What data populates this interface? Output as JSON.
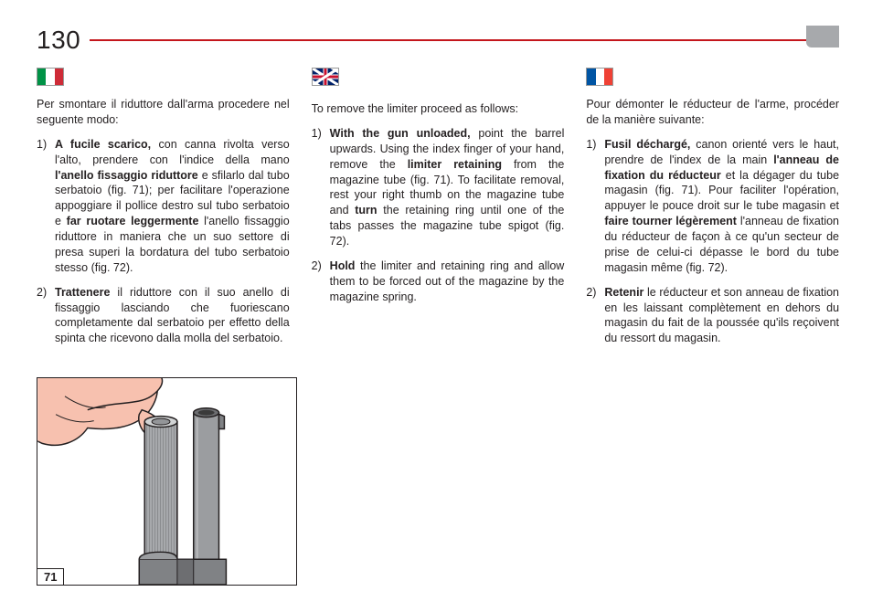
{
  "page_number": "130",
  "figure_label": "71",
  "colors": {
    "rule": "#c4161c",
    "text": "#231f20",
    "corner_tab": "#a7a9ac",
    "hand_fill": "#f7c1af",
    "hand_line": "#231f20",
    "tube_fill": "#a7a9ac",
    "tube_dark": "#6d6e71",
    "accent_yellow": "#f9e04b"
  },
  "columns": {
    "it": {
      "intro": "Per smontare il riduttore dall'arma procedere nel seguente modo:",
      "items": [
        "<b>A fucile scarico,</b> con canna rivolta verso l'alto, prendere con l'indice della mano <b>l'anello fissaggio riduttore</b> e sfilarlo dal tubo serbatoio (fig. 71); per facilitare l'operazione appoggiare il pollice destro sul tubo serbatoio e <b>far ruotare leggermente</b> l'anello fissaggio riduttore in maniera che un suo settore di presa superi la bordatura del tubo serbatoio stesso (fig. 72).",
        "<b>Trattenere</b> il riduttore con il suo anello di fissaggio lasciando che fuoriescano completamente dal serbatoio per effetto della spinta che ricevono dalla molla del serbatoio."
      ]
    },
    "en": {
      "intro": "To remove the limiter proceed as follows:",
      "items": [
        "<b>With the gun unloaded,</b> point the barrel upwards. Using the index finger of your hand, remove the <b>limiter retaining</b> from the magazine tube (fig. 71). To facilitate removal, rest your right thumb on the magazine tube and <b>turn</b> the retaining ring until one of the tabs passes the magazine tube spigot (fig. 72).",
        "<b>Hold</b> the limiter and retaining ring and allow them to be forced out of the magazine by the magazine spring."
      ]
    },
    "fr": {
      "intro": "Pour démonter le réducteur de l'arme, procéder de la manière suivante:",
      "items": [
        "<b>Fusil déchargé,</b> canon orienté vers le haut, prendre de l'index de la main <b>l'anneau de fixation du réducteur</b> et la dégager du tube magasin (fig. 71). Pour faciliter l'opération, appuyer le pouce droit sur le tube magasin et <b>faire tourner légèrement</b> l'anneau de fixation du réducteur de façon à ce qu'un secteur de prise de celui-ci dépasse le bord du tube magasin même (fig. 72).",
        "<b>Retenir</b> le réducteur et son anneau de fixation en les laissant complètement en dehors du magasin du fait de la poussée qu'ils reçoivent du ressort du magasin."
      ]
    }
  }
}
